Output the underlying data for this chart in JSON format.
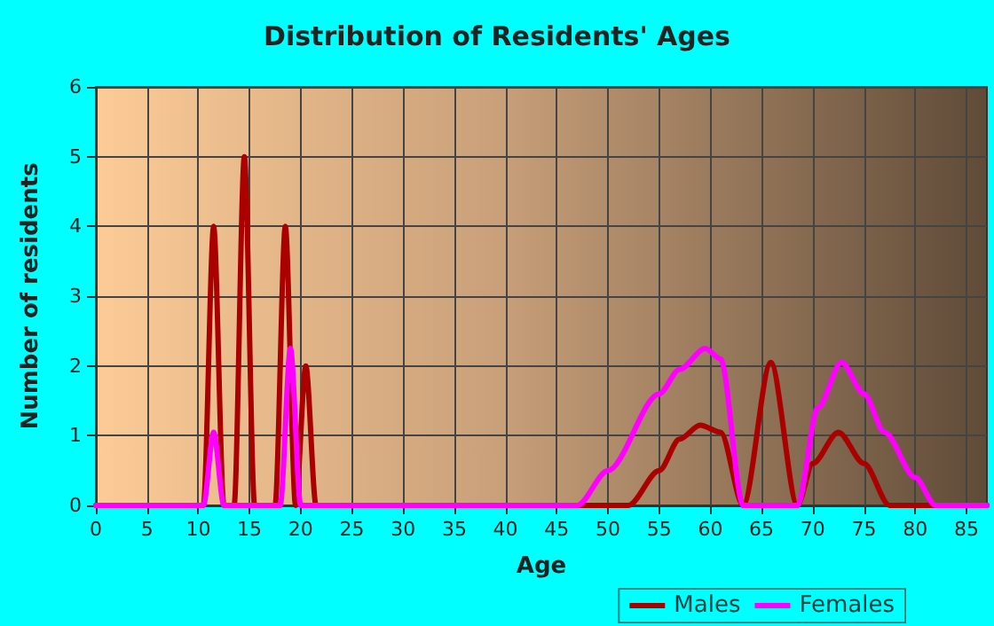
{
  "chart_data": {
    "type": "line",
    "title": "Distribution of Residents' Ages",
    "xlabel": "Age",
    "ylabel": "Number of residents",
    "xlim": [
      0,
      87
    ],
    "xticks": [
      0,
      5,
      10,
      15,
      20,
      25,
      30,
      35,
      40,
      45,
      50,
      55,
      60,
      65,
      70,
      75,
      80,
      85
    ],
    "ylim": [
      0,
      6
    ],
    "yticks": [
      0,
      1,
      2,
      3,
      4,
      5,
      6
    ],
    "grid": true,
    "legend": "bottom right",
    "marker": "none",
    "line_style": "solid",
    "series": [
      {
        "name": "Males",
        "color": "#aa0000",
        "x": [
          0,
          10,
          10.5,
          11.5,
          12.5,
          13.5,
          14.5,
          15.5,
          17.5,
          18.5,
          19.5,
          20.5,
          21.5,
          52,
          55,
          57,
          59,
          61,
          63.2,
          65.9,
          68.5,
          70,
          72.5,
          75,
          77.5,
          87
        ],
        "values": [
          0,
          0,
          0,
          4,
          0,
          0,
          5,
          0,
          0,
          4,
          0,
          2,
          0,
          0,
          0.5,
          0.95,
          1.15,
          1.05,
          0,
          2.05,
          0,
          0.6,
          1.05,
          0.6,
          0,
          0
        ]
      },
      {
        "name": "Females",
        "color": "#ff00ff",
        "x": [
          0,
          10.5,
          11.5,
          12.5,
          18,
          19,
          20,
          47,
          50,
          55,
          57,
          59.5,
          61,
          63.2,
          68.5,
          70.5,
          72.8,
          75,
          77,
          80,
          82,
          87
        ],
        "values": [
          0,
          0,
          1.05,
          0,
          0,
          2.25,
          0,
          0,
          0.5,
          1.6,
          1.95,
          2.25,
          2.1,
          0,
          0,
          1.4,
          2.05,
          1.6,
          1.05,
          0.4,
          0,
          0
        ]
      }
    ]
  }
}
